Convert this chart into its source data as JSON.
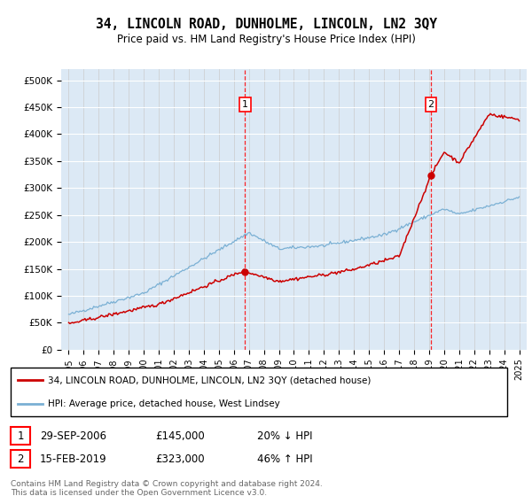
{
  "title": "34, LINCOLN ROAD, DUNHOLME, LINCOLN, LN2 3QY",
  "subtitle": "Price paid vs. HM Land Registry's House Price Index (HPI)",
  "plot_bg_color": "#dce9f5",
  "red_line_color": "#cc0000",
  "blue_line_color": "#7ab0d4",
  "sale1_price": 145000,
  "sale1_x": 2006.75,
  "sale2_price": 323000,
  "sale2_x": 2019.12,
  "ylim": [
    0,
    520000
  ],
  "xlim_start": 1994.5,
  "xlim_end": 2025.5,
  "yticks": [
    0,
    50000,
    100000,
    150000,
    200000,
    250000,
    300000,
    350000,
    400000,
    450000,
    500000
  ],
  "ytick_labels": [
    "£0",
    "£50K",
    "£100K",
    "£150K",
    "£200K",
    "£250K",
    "£300K",
    "£350K",
    "£400K",
    "£450K",
    "£500K"
  ],
  "xticks": [
    1995,
    1996,
    1997,
    1998,
    1999,
    2000,
    2001,
    2002,
    2003,
    2004,
    2005,
    2006,
    2007,
    2008,
    2009,
    2010,
    2011,
    2012,
    2013,
    2014,
    2015,
    2016,
    2017,
    2018,
    2019,
    2020,
    2021,
    2022,
    2023,
    2024,
    2025
  ],
  "legend_line1": "34, LINCOLN ROAD, DUNHOLME, LINCOLN, LN2 3QY (detached house)",
  "legend_line2": "HPI: Average price, detached house, West Lindsey",
  "table_row1_label": "1",
  "table_row1_date": "29-SEP-2006",
  "table_row1_price": "£145,000",
  "table_row1_hpi": "20% ↓ HPI",
  "table_row2_label": "2",
  "table_row2_date": "15-FEB-2019",
  "table_row2_price": "£323,000",
  "table_row2_hpi": "46% ↑ HPI",
  "footer": "Contains HM Land Registry data © Crown copyright and database right 2024.\nThis data is licensed under the Open Government Licence v3.0."
}
